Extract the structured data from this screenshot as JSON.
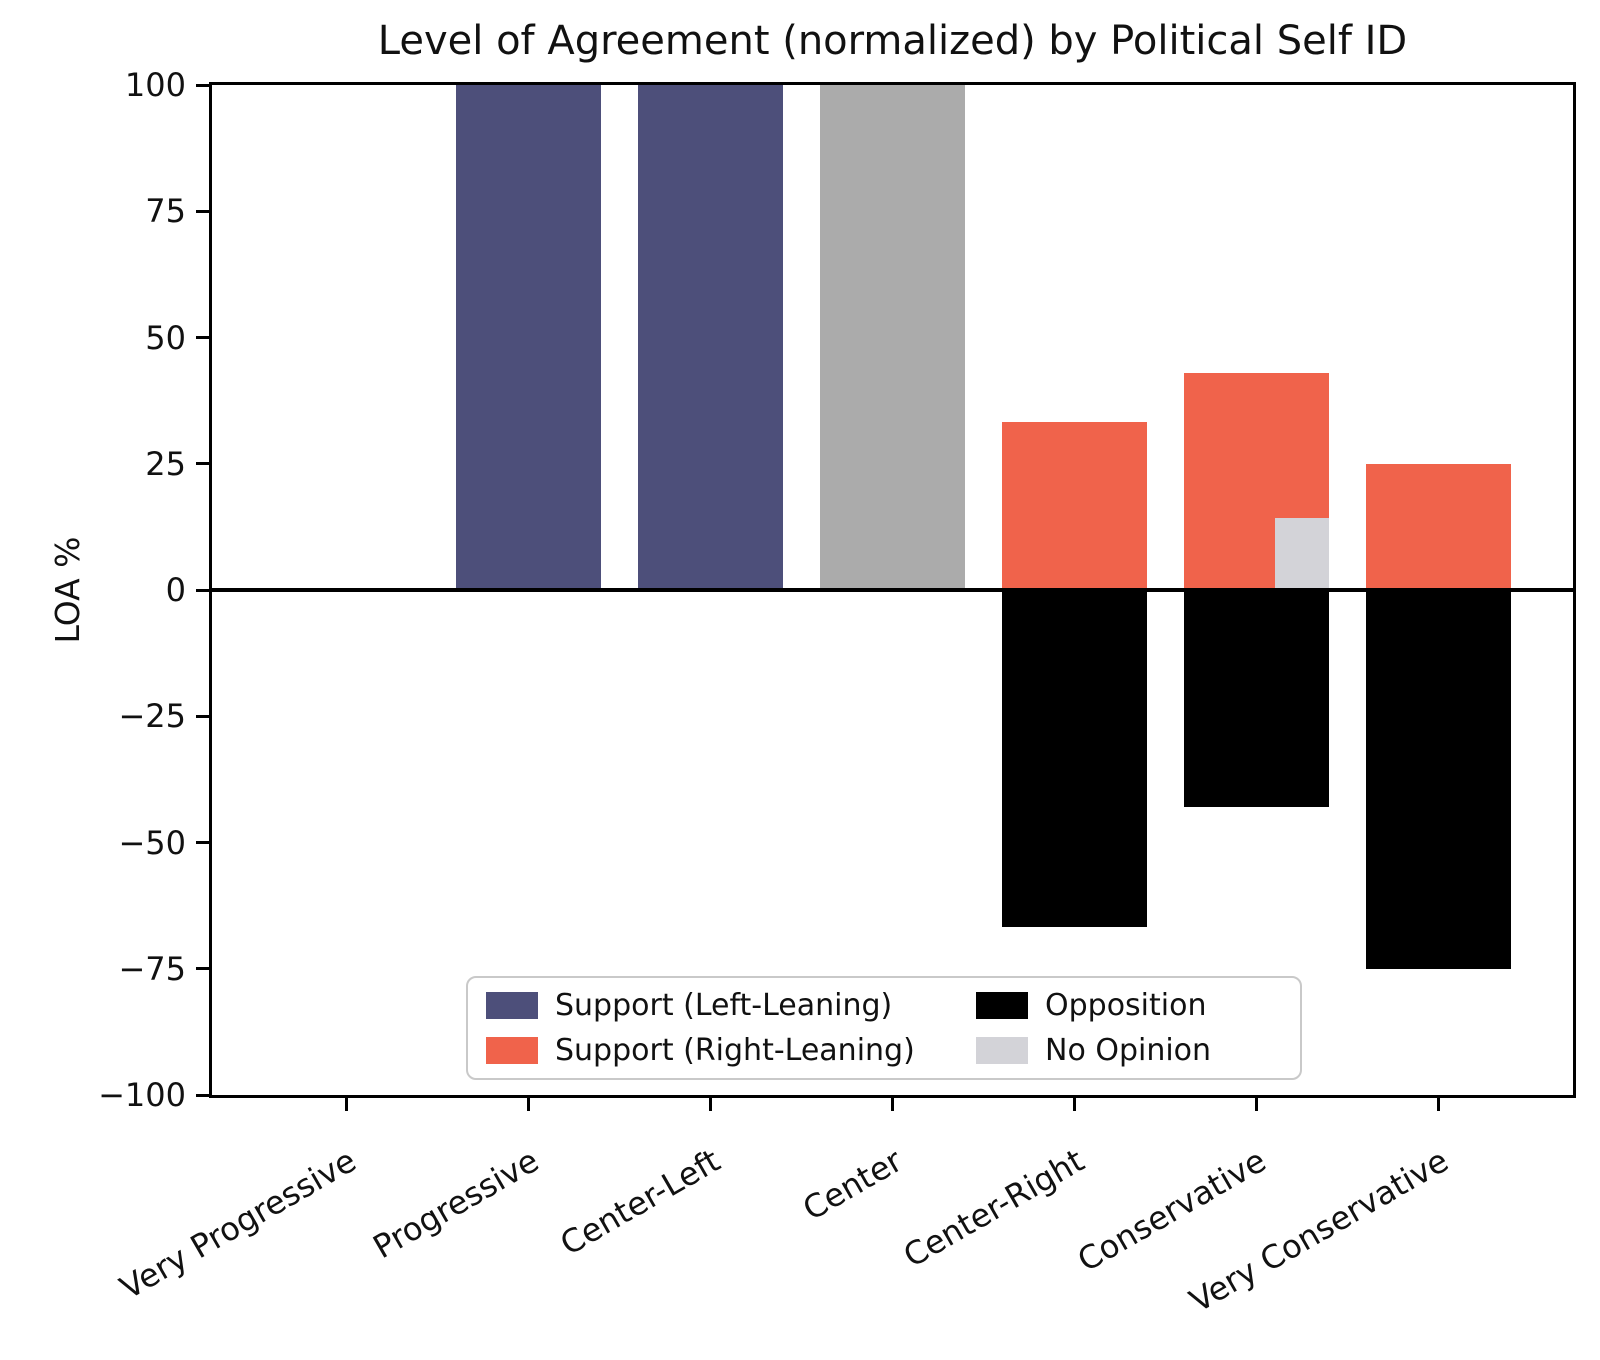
{
  "title": "Level of Agreement (normalized) by Political Self ID",
  "chart_data": {
    "type": "bar",
    "title": "Level of Agreement (normalized) by Political Self ID",
    "xlabel": "",
    "ylabel": "LOA %",
    "ylim": [
      -100,
      100
    ],
    "grid": false,
    "zero_line": true,
    "yticks": [
      {
        "label": "100",
        "value": 100
      },
      {
        "label": "75",
        "value": 75
      },
      {
        "label": "50",
        "value": 50
      },
      {
        "label": "25",
        "value": 25
      },
      {
        "label": "0",
        "value": 0
      },
      {
        "label": "−25",
        "value": -25
      },
      {
        "label": "−50",
        "value": -50
      },
      {
        "label": "−75",
        "value": -75
      },
      {
        "label": "−100",
        "value": -100
      }
    ],
    "categories": [
      "Very Progressive",
      "Progressive",
      "Center-Left",
      "Center",
      "Center-Right",
      "Conservative",
      "Very Conservative"
    ],
    "bars": [
      {
        "category": "Very Progressive",
        "support": 0,
        "support_side": "left",
        "opposition": 0,
        "no_opinion": 0
      },
      {
        "category": "Progressive",
        "support": 100,
        "support_side": "left",
        "opposition": 0,
        "no_opinion": 0
      },
      {
        "category": "Center-Left",
        "support": 100,
        "support_side": "left",
        "opposition": 0,
        "no_opinion": 0
      },
      {
        "category": "Center",
        "support": 100,
        "support_side": "center",
        "opposition": 0,
        "no_opinion": 0
      },
      {
        "category": "Center-Right",
        "support": 33.3,
        "support_side": "right",
        "opposition": -66.7,
        "no_opinion": 0
      },
      {
        "category": "Conservative",
        "support": 42.9,
        "support_side": "right",
        "opposition": -42.9,
        "no_opinion": 14.3
      },
      {
        "category": "Very Conservative",
        "support": 25,
        "support_side": "right",
        "opposition": -75,
        "no_opinion": 0
      }
    ],
    "colors": {
      "support_left": "#4D4F7A",
      "support_right": "#F0634B",
      "support_center": "#ABABAB",
      "opposition": "#000000",
      "no_opinion": "#D3D3D8"
    },
    "legend": {
      "position": "lower center",
      "columns": 2,
      "entries": [
        {
          "label": "Support (Left-Leaning)",
          "color_key": "support_left"
        },
        {
          "label": "Support (Right-Leaning)",
          "color_key": "support_right"
        },
        {
          "label": "Opposition",
          "color_key": "opposition"
        },
        {
          "label": "No Opinion",
          "color_key": "no_opinion"
        }
      ]
    }
  }
}
